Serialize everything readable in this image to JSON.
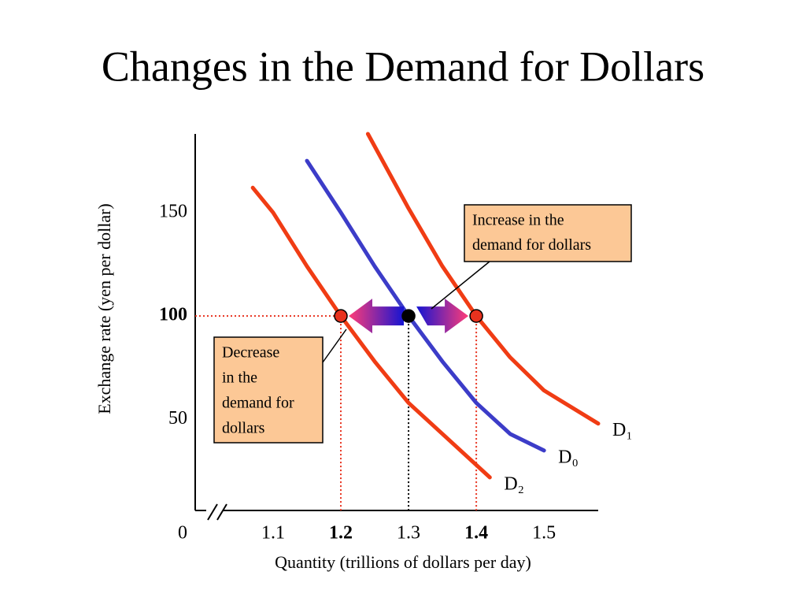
{
  "chart_data": {
    "type": "line",
    "title": "Changes in the Demand for Dollars",
    "x_label": "Quantity (trillions of dollars per day)",
    "y_label": "Exchange rate (yen per dollar)",
    "origin_label": "0",
    "xlim": [
      0.985,
      1.58
    ],
    "ylim": [
      6,
      188
    ],
    "xticks": [
      1.1,
      1.2,
      1.3,
      1.4,
      1.5
    ],
    "yticks": [
      50,
      100,
      150
    ],
    "highlighted_xticks": [
      1.2,
      1.4
    ],
    "highlighted_yticks": [
      100
    ],
    "highlight_color": "#e8321e",
    "series": [
      {
        "name": "D₁",
        "color": "#f03c14",
        "x": [
          1.24,
          1.3,
          1.35,
          1.4,
          1.45,
          1.5,
          1.58
        ],
        "values": [
          188,
          152,
          124,
          100,
          80,
          64,
          48
        ]
      },
      {
        "name": "D₀",
        "color": "#3c3cc8",
        "x": [
          1.15,
          1.2,
          1.25,
          1.3,
          1.35,
          1.4,
          1.45,
          1.5
        ],
        "values": [
          175,
          150,
          124,
          100,
          78,
          58,
          43,
          35
        ]
      },
      {
        "name": "D₂",
        "color": "#f03c14",
        "x": [
          1.07,
          1.1,
          1.15,
          1.2,
          1.25,
          1.3,
          1.35,
          1.42
        ],
        "values": [
          162,
          150,
          124,
          100,
          78,
          58,
          43,
          22
        ]
      }
    ],
    "points": [
      {
        "x": 1.2,
        "y": 100,
        "color": "#e8321e"
      },
      {
        "x": 1.3,
        "y": 100,
        "color": "#000000"
      },
      {
        "x": 1.4,
        "y": 100,
        "color": "#e8321e"
      }
    ],
    "annotations": [
      {
        "lines": [
          "Increase in the",
          "demand for dollars"
        ]
      },
      {
        "lines": [
          "Decrease",
          "in the",
          "demand for",
          "dollars"
        ]
      }
    ]
  }
}
